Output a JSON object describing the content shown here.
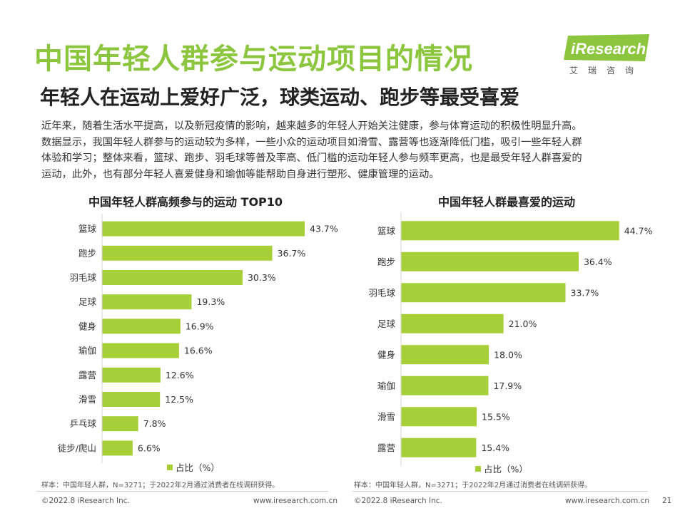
{
  "header": {
    "title": "中国年轻人群参与运动项目的情况",
    "subtitle": "年轻人在运动上爱好广泛，球类运动、跑步等最受喜爱"
  },
  "logo": {
    "brand": "iResearch",
    "sub": "艾瑞咨询",
    "accent": "#8cc63f"
  },
  "intro": {
    "lines": [
      "近年来，随着生活水平提高，以及新冠疫情的影响，越来越多的年轻人开始关注健康，参与体育运动的积极性明显升高。",
      "数据显示，我国年轻人群参与的运动较为多样，一些小众的运动项目如滑雪、露营等也逐渐降低门槛，吸引一些年轻人群",
      "体验和学习；整体来看，篮球、跑步、羽毛球等普及率高、低门槛的运动年轻人参与频率更高，也是最受年轻人群喜爱的",
      "运动，此外，也有部分年轻人喜爱健身和瑜伽等能帮助自身进行塑形、健康管理的运动。"
    ]
  },
  "colors": {
    "bar": "#a6cf38",
    "title": "#8cc63f"
  },
  "chart_data": [
    {
      "type": "bar",
      "orientation": "horizontal",
      "title": "中国年轻人群高频参与的运动 TOP10",
      "categories": [
        "篮球",
        "跑步",
        "羽毛球",
        "足球",
        "健身",
        "瑜伽",
        "露营",
        "滑雪",
        "乒乓球",
        "徒步/爬山"
      ],
      "series": [
        {
          "name": "占比（%）",
          "values": [
            43.7,
            36.7,
            30.3,
            19.3,
            16.9,
            16.6,
            12.6,
            12.5,
            7.8,
            6.6
          ]
        }
      ],
      "value_labels": [
        "43.7%",
        "36.7%",
        "30.3%",
        "19.3%",
        "16.9%",
        "16.6%",
        "12.6%",
        "12.5%",
        "7.8%",
        "6.6%"
      ],
      "legend": "占比（%）",
      "legend_position": "bottom",
      "note": "样本：中国年轻人群，N=3271；于2022年2月通过消费者在线调研获得。"
    },
    {
      "type": "bar",
      "orientation": "horizontal",
      "title": "中国年轻人群最喜爱的运动",
      "categories": [
        "篮球",
        "跑步",
        "羽毛球",
        "足球",
        "健身",
        "瑜伽",
        "滑雪",
        "露营"
      ],
      "series": [
        {
          "name": "占比（%）",
          "values": [
            44.7,
            36.4,
            33.7,
            21.0,
            18.0,
            17.9,
            15.5,
            15.4
          ]
        }
      ],
      "value_labels": [
        "44.7%",
        "36.4%",
        "33.7%",
        "21.0%",
        "18.0%",
        "17.9%",
        "15.5%",
        "15.4%"
      ],
      "legend": "占比（%）",
      "legend_position": "bottom",
      "note": "样本：中国年轻人群，N=3271；于2022年2月通过消费者在线调研获得。"
    }
  ],
  "footer": {
    "left_copyright": "©2022.8 iResearch Inc.",
    "left_url": "www.iresearch.com.cn",
    "right_copyright": "©2022.8 iResearch Inc.",
    "right_url": "www.iresearch.com.cn",
    "page_number": "21"
  }
}
